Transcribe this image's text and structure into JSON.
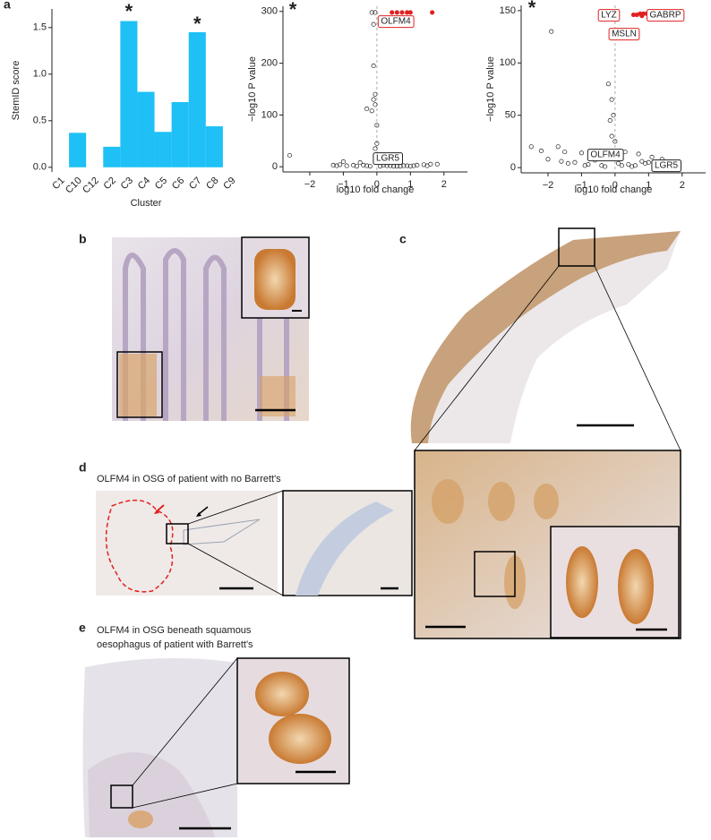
{
  "panels": [
    "a",
    "b",
    "c",
    "d",
    "e"
  ],
  "captions": {
    "d": [
      "OLFM4 in OSG of patient with no Barrett's"
    ],
    "e": [
      "OLFM4 in OSG beneath squamous",
      "oesophagus of patient with Barrett's"
    ]
  },
  "chart_data": [
    {
      "type": "bar",
      "x_label": "Cluster",
      "y_label": "StemID score",
      "categories": [
        "C1",
        "C10",
        "C12",
        "C2",
        "C3",
        "C4",
        "C5",
        "C6",
        "C7",
        "C8",
        "C9"
      ],
      "values": [
        0,
        0.37,
        0,
        0.22,
        1.57,
        0.81,
        0.38,
        0.7,
        1.45,
        0.44,
        0
      ],
      "color": "#1ec0f6",
      "ylim": [
        -0.05,
        1.7
      ],
      "yticks": [
        {
          "value": 0,
          "label": "0.0"
        },
        {
          "value": 0.5,
          "label": "0.5"
        },
        {
          "value": 1,
          "label": "1.0"
        },
        {
          "value": 1.5,
          "label": "1.5"
        }
      ],
      "annotations": [
        {
          "text": "*",
          "color": "#29b6e8"
        },
        {
          "text": "*",
          "color": "#e02020"
        }
      ]
    },
    {
      "type": "scatter",
      "x_label": "log10 fold change",
      "y_label": "−log10 P value",
      "xlim": [
        -2.8,
        2.7
      ],
      "ylim": [
        -10,
        310
      ],
      "xticks": [
        {
          "value": -2,
          "label": "−2"
        },
        {
          "value": -1,
          "label": "−1"
        },
        0,
        1,
        2
      ],
      "yticks": [
        0,
        100,
        200,
        300
      ],
      "series": [
        {
          "color": "#222222",
          "x": [
            -0.15,
            -0.05,
            -0.1,
            -0.1,
            -0.05,
            -0.1,
            -0.05,
            -0.3,
            -0.15,
            0,
            0,
            -0.05,
            -2.6,
            -1.0,
            -0.5,
            1.6,
            1.8,
            -1.3,
            0.3,
            0.8,
            1.2,
            -0.7,
            0.5,
            -0.2,
            1.0,
            -1.1,
            -0.9,
            -0.4,
            0.1,
            0.4,
            0.6,
            0.9,
            1.4,
            -0.6,
            -0.3,
            0.2,
            0.7,
            1.1,
            1.5,
            -1.2
          ],
          "values": [
            298,
            298,
            275,
            195,
            140,
            130,
            120,
            112,
            108,
            80,
            45,
            35,
            22,
            10,
            8,
            5,
            5,
            3,
            2,
            2,
            3,
            3,
            1,
            1,
            1,
            4,
            2,
            3,
            1,
            2,
            1,
            2,
            4,
            1,
            2,
            3,
            1,
            2,
            2,
            2
          ]
        },
        {
          "color": "#e02020",
          "x": [
            0.45,
            0.6,
            0.75,
            0.9,
            1.0,
            1.65
          ],
          "values": [
            298,
            298,
            298,
            298,
            298,
            298
          ]
        }
      ],
      "labels": [
        {
          "text": "OLFM4",
          "color": "#e02020"
        },
        {
          "text": "LGR5",
          "color": "#222222"
        }
      ],
      "annotations": [
        {
          "text": "*",
          "color": "#29b6e8"
        }
      ]
    },
    {
      "type": "scatter",
      "x_label": "log10 fold change",
      "y_label": "−log10 P value",
      "xlim": [
        -2.8,
        2.7
      ],
      "ylim": [
        -5,
        155
      ],
      "xticks": [
        {
          "value": -2,
          "label": "−2"
        },
        {
          "value": -1,
          "label": "−1"
        },
        0,
        1,
        2
      ],
      "yticks": [
        0,
        50,
        100,
        150
      ],
      "series": [
        {
          "color": "#222222",
          "x": [
            -1.9,
            -1.7,
            -2.5,
            -2.2,
            -1.5,
            -1.0,
            -0.5,
            -0.2,
            -0.1,
            -0.05,
            -0.15,
            -0.1,
            0,
            0.3,
            0.7,
            1.1,
            1.4,
            -1.2,
            -0.8,
            0.2,
            0.5,
            -0.3,
            0.9,
            1.5,
            -2.0,
            -0.6,
            -1.4,
            -0.9,
            0.4,
            0.6,
            1.0,
            1.2,
            -1.6,
            -0.4,
            0.1,
            0.8
          ],
          "values": [
            130,
            20,
            20,
            16,
            15,
            14,
            15,
            80,
            65,
            50,
            45,
            30,
            25,
            15,
            13,
            10,
            8,
            5,
            3,
            2,
            1,
            1,
            4,
            2,
            8,
            7,
            4,
            2,
            3,
            2,
            5,
            3,
            6,
            2,
            4,
            6
          ]
        },
        {
          "color": "#e02020",
          "x": [
            0.55,
            0.65,
            0.75,
            0.8,
            0.85,
            0.95
          ],
          "values": [
            146,
            146,
            147,
            145,
            147,
            147
          ]
        }
      ],
      "labels": [
        {
          "text": "LYZ",
          "color": "#e02020"
        },
        {
          "text": "GABRP",
          "color": "#e02020"
        },
        {
          "text": "MSLN",
          "color": "#e02020"
        },
        {
          "text": "OLFM4",
          "color": "#222222"
        },
        {
          "text": "LGR5",
          "color": "#222222"
        }
      ],
      "annotations": [
        {
          "text": "*",
          "color": "#e02020"
        }
      ]
    }
  ]
}
